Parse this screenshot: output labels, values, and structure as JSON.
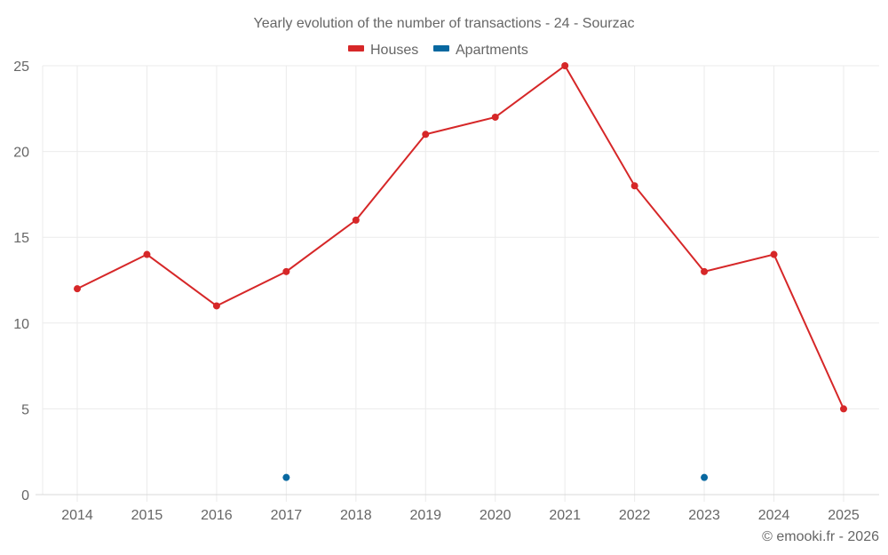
{
  "chart_data": {
    "type": "line",
    "title": "Yearly evolution of the number of transactions - 24 - Sourzac",
    "xlabel": "",
    "ylabel": "",
    "categories": [
      "2014",
      "2015",
      "2016",
      "2017",
      "2018",
      "2019",
      "2020",
      "2021",
      "2022",
      "2023",
      "2024",
      "2025"
    ],
    "ylim": [
      0,
      25
    ],
    "yticks": [
      0,
      5,
      10,
      15,
      20,
      25
    ],
    "grid": true,
    "legend_position": "top-center",
    "series": [
      {
        "name": "Houses",
        "color": "#d62728",
        "mode": "lines+markers",
        "values": [
          12,
          14,
          11,
          13,
          16,
          21,
          22,
          25,
          18,
          13,
          14,
          5
        ]
      },
      {
        "name": "Apartments",
        "color": "#0868a0",
        "mode": "markers",
        "values": [
          null,
          null,
          null,
          1,
          null,
          null,
          null,
          null,
          null,
          1,
          null,
          null
        ]
      }
    ],
    "credit": "© emooki.fr - 2026"
  }
}
